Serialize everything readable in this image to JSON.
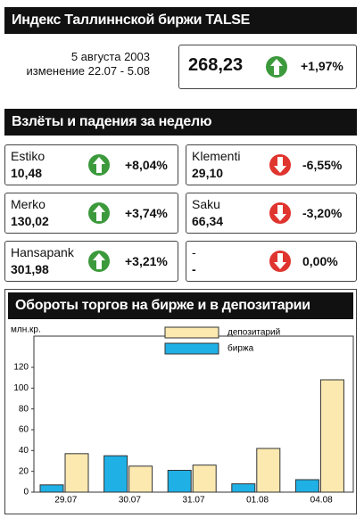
{
  "header": {
    "title": "Индекс Таллиннской биржи TALSE"
  },
  "index": {
    "date": "5 августа 2003",
    "change_period": "изменение 22.07 - 5.08",
    "value": "268,23",
    "change": "+1,97%"
  },
  "movers": {
    "title": "Взлёты и падения за неделю",
    "items": [
      {
        "name": "Estiko",
        "price": "10,48",
        "change": "+8,04%"
      },
      {
        "name": "Klementi",
        "price": "29,10",
        "change": "-6,55%"
      },
      {
        "name": "Merko",
        "price": "130,02",
        "change": "+3,74%"
      },
      {
        "name": "Saku",
        "price": "66,34",
        "change": "-3,20%"
      },
      {
        "name": "Hansapank",
        "price": "301,98",
        "change": "+3,21%"
      },
      {
        "name": "-",
        "price": "-",
        "change": "0,00%"
      }
    ]
  },
  "chart_data": {
    "type": "bar",
    "title": "Обороты торгов на бирже и в депозитарии",
    "y_label": "млн.кр.",
    "categories": [
      "29.07",
      "30.07",
      "31.07",
      "01.08",
      "04.08"
    ],
    "series": [
      {
        "name": "депозитарий",
        "color": "#fbe9b0",
        "values": [
          37,
          25,
          26,
          42,
          108
        ]
      },
      {
        "name": "биржа",
        "color": "#1fb0e6",
        "values": [
          7,
          35,
          21,
          8,
          12
        ]
      }
    ],
    "ylim": [
      0,
      150
    ],
    "yticks": [
      0,
      20,
      40,
      60,
      80,
      100,
      120
    ]
  }
}
